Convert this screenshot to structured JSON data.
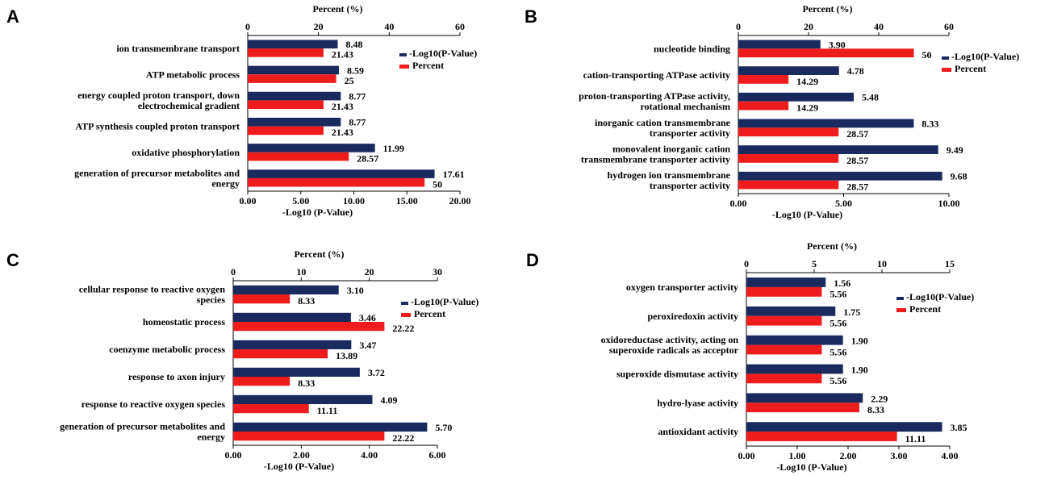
{
  "colors": {
    "pvalue_series": "#1a2a5e",
    "percent_series": "#ee1c1c"
  },
  "chart_data": [
    {
      "panel": "A",
      "type": "bar",
      "orientation": "horizontal",
      "top_axis_title": "Percent (%)",
      "top_axis_range": [
        0,
        60
      ],
      "top_ticks": [
        "0",
        "20",
        "40",
        "60"
      ],
      "top_tick_values": [
        0,
        20,
        40,
        60
      ],
      "bottom_axis_title": "-Log10 (P-Value)",
      "bottom_axis_range": [
        0,
        20
      ],
      "bottom_ticks": [
        "0.00",
        "5.00",
        "10.00",
        "15.00",
        "20.00"
      ],
      "bottom_tick_values": [
        0,
        5,
        10,
        15,
        20
      ],
      "legend": [
        "-Log10(P-Value)",
        "Percent"
      ],
      "legend_position": "top-right",
      "categories": [
        [
          "ion transmembrane transport"
        ],
        [
          "ATP metabolic process"
        ],
        [
          "energy coupled proton transport, down",
          "electrochemical gradient"
        ],
        [
          "ATP synthesis coupled proton transport"
        ],
        [
          "oxidative phosphorylation"
        ],
        [
          "generation of precursor metabolites and",
          "energy"
        ]
      ],
      "series": [
        {
          "name": "-Log10(P-Value)",
          "axis": "bottom",
          "values": [
            8.48,
            8.59,
            8.77,
            8.77,
            11.99,
            17.61
          ],
          "labels": [
            "8.48",
            "8.59",
            "8.77",
            "8.77",
            "11.99",
            "17.61"
          ]
        },
        {
          "name": "Percent",
          "axis": "top",
          "values": [
            21.43,
            25,
            21.43,
            21.43,
            28.57,
            50
          ],
          "labels": [
            "21.43",
            "25",
            "21.43",
            "21.43",
            "28.57",
            "50"
          ]
        }
      ]
    },
    {
      "panel": "B",
      "type": "bar",
      "orientation": "horizontal",
      "top_axis_title": "Percent (%)",
      "top_axis_range": [
        0,
        60
      ],
      "top_ticks": [
        "0",
        "20",
        "40",
        "60"
      ],
      "top_tick_values": [
        0,
        20,
        40,
        60
      ],
      "bottom_axis_title": "-Log10 (P-Value)",
      "bottom_axis_range": [
        0,
        10
      ],
      "bottom_ticks": [
        "0.00",
        "5.00",
        "10.00"
      ],
      "bottom_tick_values": [
        0,
        5,
        10
      ],
      "legend": [
        "-Log10(P-Value)",
        "Percent"
      ],
      "legend_position": "top-right",
      "categories": [
        [
          "nucleotide binding"
        ],
        [
          "cation-transporting ATPase activity"
        ],
        [
          "proton-transporting ATPase activity,",
          "rotational mechanism"
        ],
        [
          "inorganic cation transmembrane",
          "transporter activity"
        ],
        [
          "monovalent inorganic cation",
          "transmembrane transporter activity"
        ],
        [
          "hydrogen ion transmembrane",
          "transporter activity"
        ]
      ],
      "series": [
        {
          "name": "-Log10(P-Value)",
          "axis": "bottom",
          "values": [
            3.9,
            4.78,
            5.48,
            8.33,
            9.49,
            9.68
          ],
          "labels": [
            "3.90",
            "4.78",
            "5.48",
            "8.33",
            "9.49",
            "9.68"
          ]
        },
        {
          "name": "Percent",
          "axis": "top",
          "values": [
            50,
            14.29,
            14.29,
            28.57,
            28.57,
            28.57
          ],
          "labels": [
            "50",
            "14.29",
            "14.29",
            "28.57",
            "28.57",
            "28.57"
          ]
        }
      ]
    },
    {
      "panel": "C",
      "type": "bar",
      "orientation": "horizontal",
      "top_axis_title": "Percent (%)",
      "top_axis_range": [
        0,
        30
      ],
      "top_ticks": [
        "0",
        "10",
        "20",
        "30"
      ],
      "top_tick_values": [
        0,
        10,
        20,
        30
      ],
      "bottom_axis_title": "-Log10 (P-Value)",
      "bottom_axis_range": [
        0,
        6
      ],
      "bottom_ticks": [
        "0.00",
        "2.00",
        "4.00",
        "6.00"
      ],
      "bottom_tick_values": [
        0,
        2,
        4,
        6
      ],
      "legend": [
        "-Log10(P-Value)",
        "Percent"
      ],
      "legend_position": "top-right",
      "categories": [
        [
          "cellular response to reactive oxygen",
          "species"
        ],
        [
          "homeostatic process"
        ],
        [
          "coenzyme metabolic process"
        ],
        [
          "response to axon injury"
        ],
        [
          "response to reactive oxygen species"
        ],
        [
          "generation of precursor metabolites and",
          "energy"
        ]
      ],
      "series": [
        {
          "name": "-Log10(P-Value)",
          "axis": "bottom",
          "values": [
            3.1,
            3.46,
            3.47,
            3.72,
            4.09,
            5.7
          ],
          "labels": [
            "3.10",
            "3.46",
            "3.47",
            "3.72",
            "4.09",
            "5.70"
          ]
        },
        {
          "name": "Percent",
          "axis": "top",
          "values": [
            8.33,
            22.22,
            13.89,
            8.33,
            11.11,
            22.22
          ],
          "labels": [
            "8.33",
            "22.22",
            "13.89",
            "8.33",
            "11.11",
            "22.22"
          ]
        }
      ]
    },
    {
      "panel": "D",
      "type": "bar",
      "orientation": "horizontal",
      "top_axis_title": "Percent (%)",
      "top_axis_range": [
        0,
        15
      ],
      "top_ticks": [
        "0",
        "5",
        "10",
        "15"
      ],
      "top_tick_values": [
        0,
        5,
        10,
        15
      ],
      "bottom_axis_title": "-Log10 (P-Value)",
      "bottom_axis_range": [
        0,
        4
      ],
      "bottom_ticks": [
        "0.00",
        "1.00",
        "2.00",
        "3.00",
        "4.00"
      ],
      "bottom_tick_values": [
        0,
        1,
        2,
        3,
        4
      ],
      "legend": [
        "-Log10(P-Value)",
        "Percent"
      ],
      "legend_position": "top-right",
      "categories": [
        [
          "oxygen transporter activity"
        ],
        [
          "peroxiredoxin activity"
        ],
        [
          "oxidoreductase activity, acting on",
          "superoxide radicals as acceptor"
        ],
        [
          "superoxide dismutase activity"
        ],
        [
          "hydro-lyase activity"
        ],
        [
          "antioxidant activity"
        ]
      ],
      "series": [
        {
          "name": "-Log10(P-Value)",
          "axis": "bottom",
          "values": [
            1.56,
            1.75,
            1.9,
            1.9,
            2.29,
            3.85
          ],
          "labels": [
            "1.56",
            "1.75",
            "1.90",
            "1.90",
            "2.29",
            "3.85"
          ]
        },
        {
          "name": "Percent",
          "axis": "top",
          "values": [
            5.56,
            5.56,
            5.56,
            5.56,
            8.33,
            11.11
          ],
          "labels": [
            "5.56",
            "5.56",
            "5.56",
            "5.56",
            "8.33",
            "11.11"
          ]
        }
      ]
    }
  ]
}
